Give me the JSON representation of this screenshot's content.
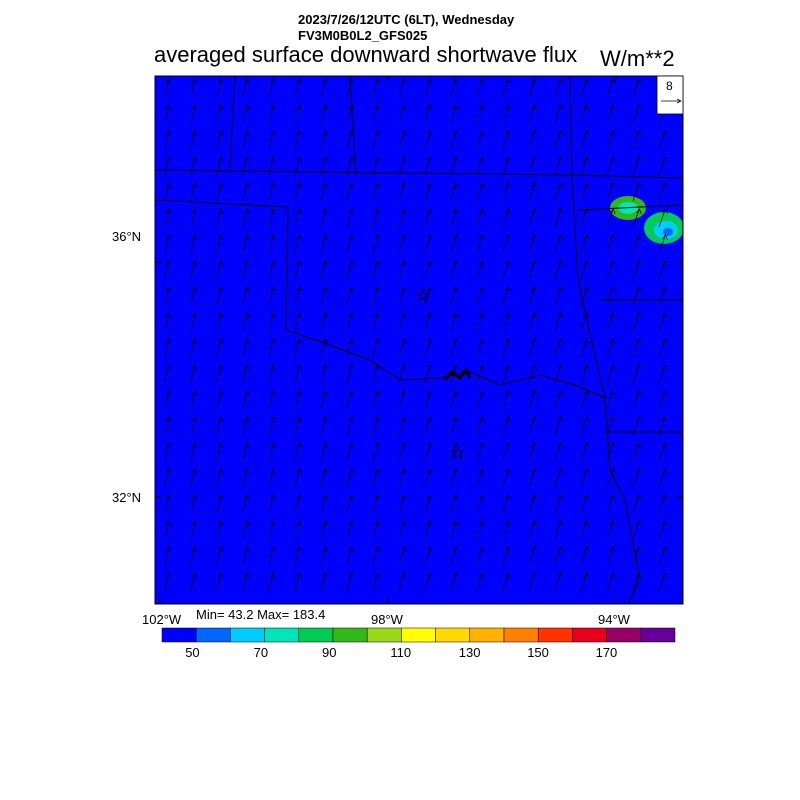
{
  "header": {
    "datetime": "2023/7/26/12UTC (6LT), Wednesday",
    "model": "FV3M0B0L2_GFS025",
    "title": "averaged surface downward shortwave flux",
    "units": "W/m**2"
  },
  "map": {
    "lat_labels": [
      "36°N",
      "32°N"
    ],
    "lon_labels": [
      "102°W",
      "98°W",
      "94°W"
    ],
    "minmax_text": "Min= 43.2 Max= 183.4",
    "wind_ref_vector": "8",
    "markers": [
      "star-1",
      "star-2"
    ]
  },
  "colorbar": {
    "colors": [
      "#0000ff",
      "#0066ff",
      "#00ccff",
      "#00e6b8",
      "#00cc55",
      "#33b81a",
      "#99d91a",
      "#ffff00",
      "#ffd900",
      "#ffb300",
      "#ff8000",
      "#ff3300",
      "#e6001a",
      "#990066",
      "#660099"
    ],
    "tick_labels": [
      "50",
      "70",
      "90",
      "110",
      "130",
      "150",
      "170"
    ]
  }
}
